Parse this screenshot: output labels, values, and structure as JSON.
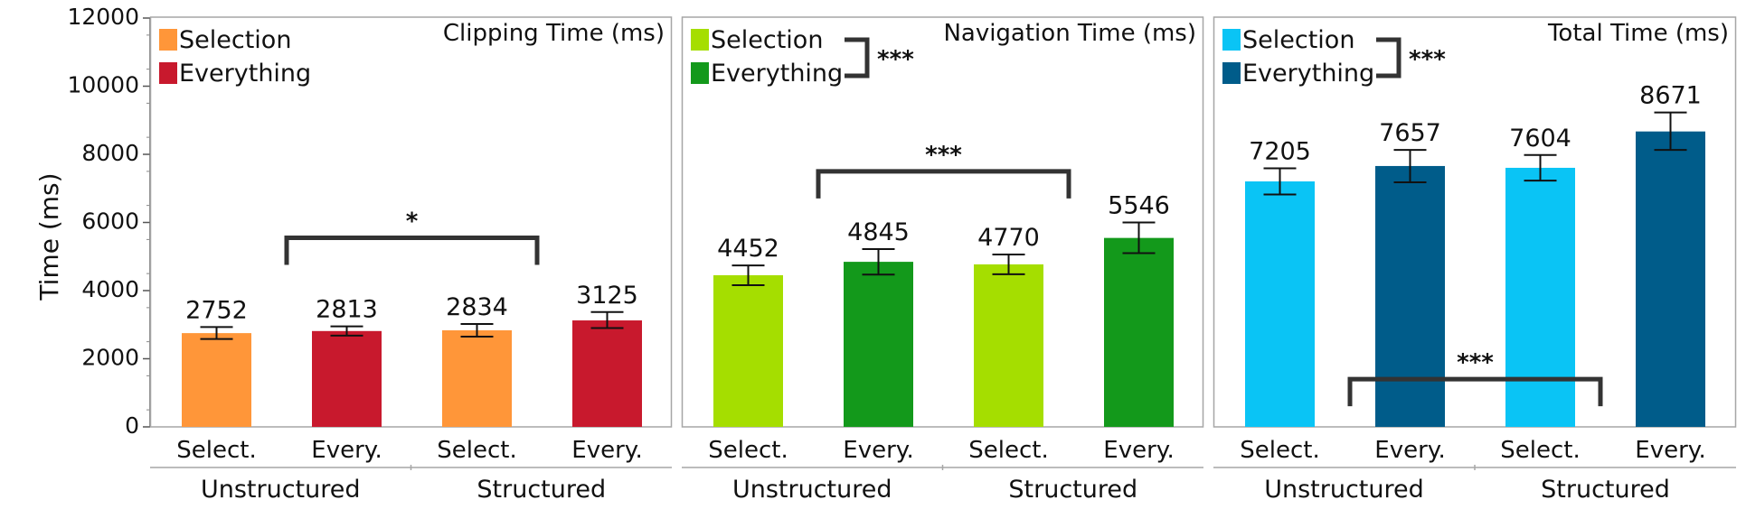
{
  "axis": {
    "ylabel": "Time (ms)",
    "ylim": [
      0,
      12000
    ],
    "yticks": [
      "0",
      "2000",
      "4000",
      "6000",
      "8000",
      "10000",
      "12000"
    ]
  },
  "chart_data": [
    {
      "type": "bar",
      "title": "Clipping Time (ms)",
      "ylabel": "Time (ms)",
      "ylim": [
        0,
        12000
      ],
      "categories": [
        "Select.",
        "Every.",
        "Select.",
        "Every."
      ],
      "groups": [
        "Unstructured",
        "Structured"
      ],
      "values": [
        2752,
        2813,
        2834,
        3125
      ],
      "value_labels": [
        "2752",
        "2813",
        "2834",
        "3125"
      ],
      "error": [
        [
          2580,
          2930
        ],
        [
          2680,
          2950
        ],
        [
          2650,
          3020
        ],
        [
          2900,
          3370
        ]
      ],
      "colors": [
        "#FF9639",
        "#C8192D",
        "#FF9639",
        "#C8192D"
      ],
      "legend": [
        {
          "label": "Selection",
          "color": "#FF9639"
        },
        {
          "label": "Everything",
          "color": "#C8192D"
        }
      ],
      "legend_significance": "",
      "bracket": {
        "from_bar": 1,
        "to_bar": 2,
        "label": "*",
        "level": 5550,
        "position": "above"
      },
      "grid": false
    },
    {
      "type": "bar",
      "title": "Navigation Time (ms)",
      "ylabel": "",
      "ylim": [
        0,
        12000
      ],
      "categories": [
        "Select.",
        "Every.",
        "Select.",
        "Every."
      ],
      "groups": [
        "Unstructured",
        "Structured"
      ],
      "values": [
        4452,
        4845,
        4770,
        5546
      ],
      "value_labels": [
        "4452",
        "4845",
        "4770",
        "5546"
      ],
      "error": [
        [
          4160,
          4740
        ],
        [
          4470,
          5220
        ],
        [
          4480,
          5060
        ],
        [
          5100,
          6000
        ]
      ],
      "colors": [
        "#A5DE00",
        "#13991B",
        "#A5DE00",
        "#13991B"
      ],
      "legend": [
        {
          "label": "Selection",
          "color": "#A5DE00"
        },
        {
          "label": "Everything",
          "color": "#13991B"
        }
      ],
      "legend_significance": "***",
      "bracket": {
        "from_bar": 1,
        "to_bar": 2,
        "label": "***",
        "level": 7500,
        "position": "above"
      },
      "grid": false
    },
    {
      "type": "bar",
      "title": "Total Time (ms)",
      "ylabel": "",
      "ylim": [
        0,
        12000
      ],
      "categories": [
        "Select.",
        "Every.",
        "Select.",
        "Every."
      ],
      "groups": [
        "Unstructured",
        "Structured"
      ],
      "values": [
        7205,
        7657,
        7604,
        8671
      ],
      "value_labels": [
        "7205",
        "7657",
        "7604",
        "8671"
      ],
      "error": [
        [
          6820,
          7590
        ],
        [
          7180,
          8130
        ],
        [
          7230,
          7980
        ],
        [
          8130,
          9230
        ]
      ],
      "colors": [
        "#0AC4F5",
        "#005C8A",
        "#0AC4F5",
        "#005C8A"
      ],
      "legend": [
        {
          "label": "Selection",
          "color": "#0AC4F5"
        },
        {
          "label": "Everything",
          "color": "#005C8A"
        }
      ],
      "legend_significance": "***",
      "bracket": {
        "from_bar": 1,
        "to_bar": 2,
        "label": "***",
        "level": 1400,
        "position": "below"
      },
      "grid": false
    }
  ]
}
